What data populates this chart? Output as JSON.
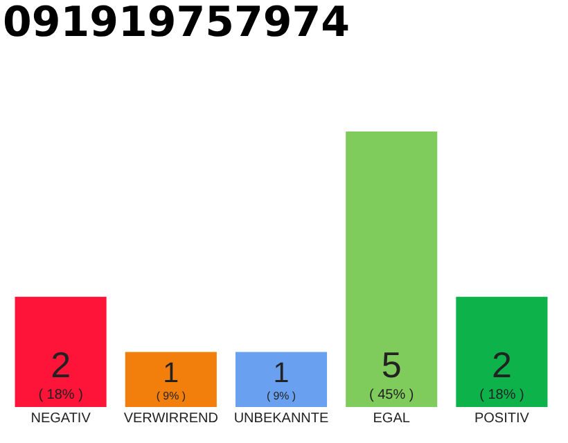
{
  "chart_data": {
    "type": "bar",
    "title": "091919757974",
    "categories": [
      "NEGATIV",
      "VERWIRREND",
      "UNBEKANNTE",
      "EGAL",
      "POSITIV"
    ],
    "values": [
      2,
      1,
      1,
      5,
      2
    ],
    "colors": [
      "#ff1439",
      "#f27e0c",
      "#6aa0f0",
      "#7fcb5c",
      "#0db34a"
    ],
    "value_labels": [
      "2\n( 18% )",
      "1\n( 9% )",
      "1\n( 9% )",
      "5\n( 45% )",
      "2\n( 18% )"
    ],
    "ylim": [
      0,
      5
    ],
    "tick_labels": "x"
  }
}
